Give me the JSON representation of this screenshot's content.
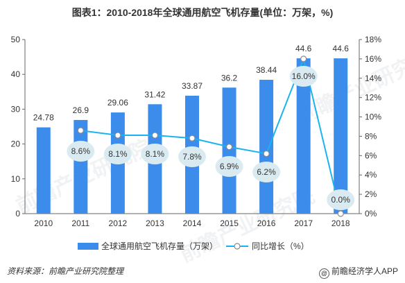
{
  "header": {
    "title": "图表1：2010-2018年全球通用航空飞机存量(单位：万架，%)"
  },
  "watermark": {
    "text": "前瞻产业研究院"
  },
  "footer": {
    "source": "资料来源：前瞻产业研究院整理",
    "brand": "前瞻经济学人APP",
    "brand_icon": "at-icon"
  },
  "colors": {
    "bar": "#3c8ceb",
    "line": "#19b4f0",
    "bubble": "#d9ebf1",
    "axis": "#666666"
  },
  "chart_data": {
    "type": "bar",
    "categories": [
      "2010",
      "2011",
      "2012",
      "2013",
      "2014",
      "2015",
      "2016",
      "2017",
      "2018"
    ],
    "series": [
      {
        "name": "全球通用航空飞机存量（万架）",
        "type": "bar",
        "axis": "left",
        "values": [
          24.78,
          26.9,
          29.06,
          31.42,
          33.87,
          36.2,
          38.44,
          44.6,
          44.6
        ],
        "labels": [
          "24.78",
          "26.9",
          "29.06",
          "31.42",
          "33.87",
          "36.2",
          "38.44",
          "44.6",
          "44.6"
        ]
      },
      {
        "name": "同比增长（%）",
        "type": "line",
        "axis": "right",
        "x": [
          "2011",
          "2012",
          "2013",
          "2014",
          "2015",
          "2016",
          "2017",
          "2018"
        ],
        "values": [
          8.6,
          8.1,
          8.1,
          7.8,
          6.9,
          6.2,
          16.0,
          0.0
        ],
        "labels": [
          "8.6%",
          "8.1%",
          "8.1%",
          "7.8%",
          "6.9%",
          "6.2%",
          "16.0%",
          "0.0%"
        ]
      }
    ],
    "y_left": {
      "ticks": [
        "0",
        "10",
        "20",
        "30",
        "40",
        "50"
      ],
      "lim": [
        0,
        50
      ]
    },
    "y_right": {
      "ticks": [
        "0%",
        "2%",
        "4%",
        "6%",
        "8%",
        "10%",
        "12%",
        "14%",
        "16%",
        "18%"
      ],
      "lim": [
        0,
        18
      ]
    },
    "legend": {
      "position": "bottom"
    },
    "grid": false
  }
}
